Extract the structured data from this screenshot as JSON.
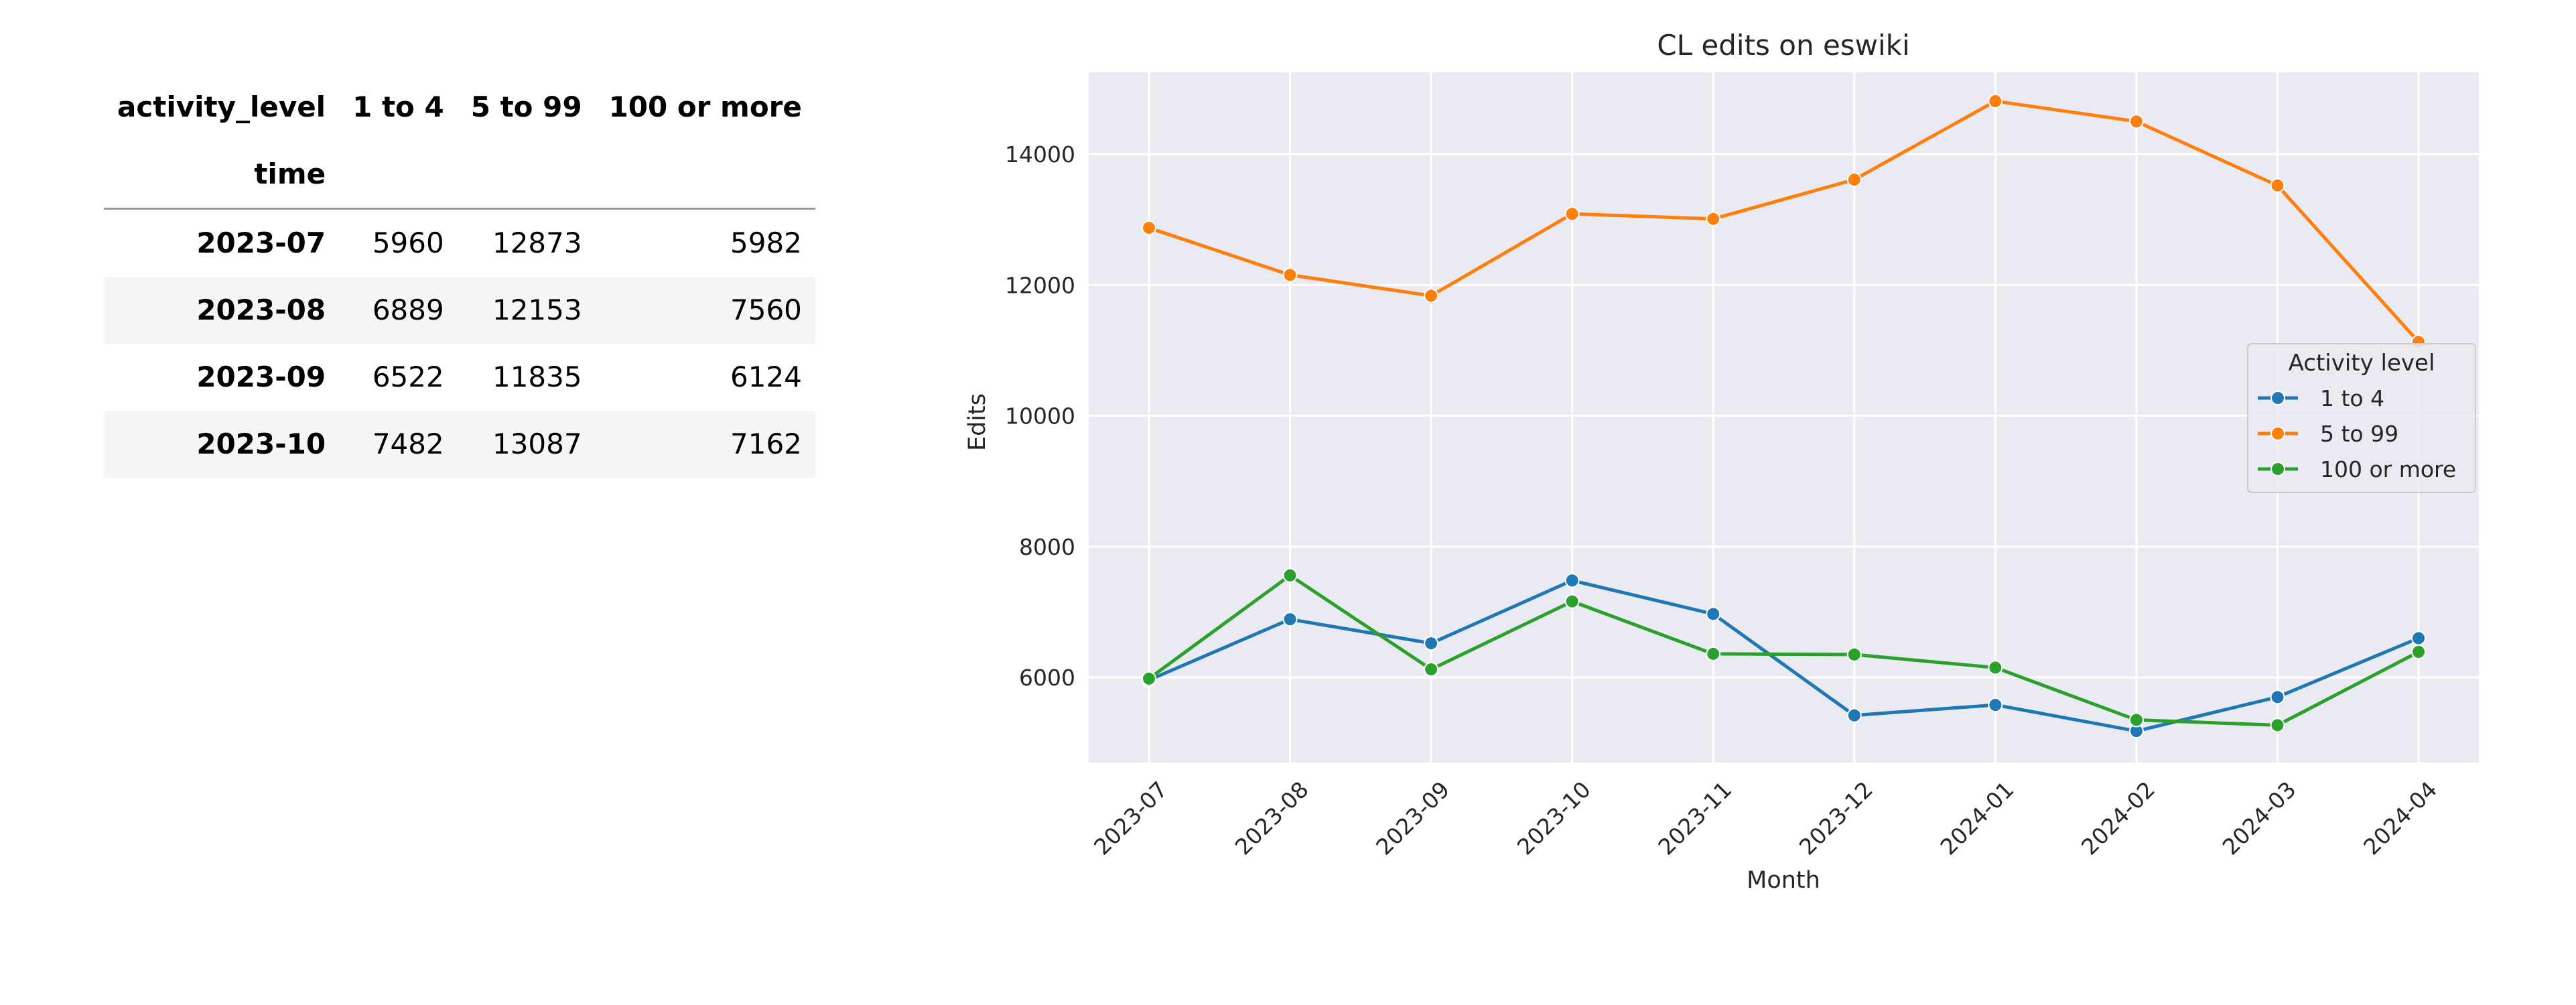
{
  "table": {
    "header_label": "activity_level",
    "index_label": "time",
    "columns": [
      "1 to 4",
      "5 to 99",
      "100 or more"
    ],
    "rows": [
      {
        "time": "2023-07",
        "v1": "5960",
        "v2": "12873",
        "v3": "5982"
      },
      {
        "time": "2023-08",
        "v1": "6889",
        "v2": "12153",
        "v3": "7560"
      },
      {
        "time": "2023-09",
        "v1": "6522",
        "v2": "11835",
        "v3": "6124"
      },
      {
        "time": "2023-10",
        "v1": "7482",
        "v2": "13087",
        "v3": "7162"
      }
    ]
  },
  "chart_data": {
    "type": "line",
    "title": "CL edits on eswiki",
    "xlabel": "Month",
    "ylabel": "Edits",
    "categories": [
      "2023-07",
      "2023-08",
      "2023-09",
      "2023-10",
      "2023-11",
      "2023-12",
      "2024-01",
      "2024-02",
      "2024-03",
      "2024-04"
    ],
    "yticks": [
      6000,
      8000,
      10000,
      12000,
      14000
    ],
    "ylim": [
      4700,
      15250
    ],
    "grid": true,
    "legend": {
      "title": "Activity level",
      "position": "right"
    },
    "series": [
      {
        "name": "1 to 4",
        "color": "#1f77b4",
        "values": [
          5960,
          6889,
          6522,
          7482,
          6970,
          5420,
          5580,
          5180,
          5700,
          6600
        ]
      },
      {
        "name": "5 to 99",
        "color": "#ff7f0e",
        "values": [
          12873,
          12153,
          11835,
          13087,
          13010,
          13610,
          14810,
          14500,
          13520,
          11130
        ]
      },
      {
        "name": "100 or more",
        "color": "#2ca02c",
        "values": [
          5982,
          7560,
          6124,
          7162,
          6360,
          6350,
          6150,
          5350,
          5270,
          6390
        ]
      }
    ]
  }
}
